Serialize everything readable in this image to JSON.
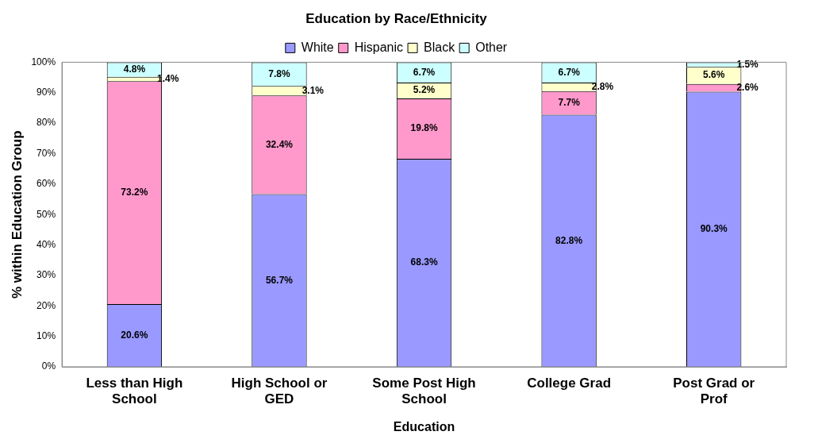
{
  "chart_data": {
    "type": "bar",
    "title": "Education by Race/Ethnicity",
    "xlabel": "Education",
    "ylabel": "% within Education Group",
    "stacked": true,
    "legend": "top",
    "grid": false,
    "categories": [
      "Less than High School",
      "High School or GED",
      "Some Post High School",
      "College Grad",
      "Post Grad or Prof"
    ],
    "ylim": [
      0,
      100
    ],
    "yticks": [
      {
        "value": 0,
        "label": "0%"
      },
      {
        "value": 10,
        "label": "10%"
      },
      {
        "value": 20,
        "label": "20%"
      },
      {
        "value": 30,
        "label": "30%"
      },
      {
        "value": 40,
        "label": "40%"
      },
      {
        "value": 50,
        "label": "50%"
      },
      {
        "value": 60,
        "label": "60%"
      },
      {
        "value": 70,
        "label": "70%"
      },
      {
        "value": 80,
        "label": "80%"
      },
      {
        "value": 90,
        "label": "90%"
      },
      {
        "value": 100,
        "label": "100%"
      }
    ],
    "series": [
      {
        "name": "White",
        "color": "#9999ff",
        "values": [
          20.6,
          56.7,
          68.3,
          82.8,
          90.3
        ],
        "value_labels": [
          "20.6%",
          "56.7%",
          "68.3%",
          "82.8%",
          "90.3%"
        ]
      },
      {
        "name": "Hispanic",
        "color": "#ff99cc",
        "values": [
          73.2,
          32.4,
          19.8,
          7.7,
          2.6
        ],
        "value_labels": [
          "73.2%",
          "32.4%",
          "19.8%",
          "7.7%",
          "2.6%"
        ]
      },
      {
        "name": "Black",
        "color": "#ffffcc",
        "values": [
          1.4,
          3.1,
          5.2,
          2.8,
          5.6
        ],
        "value_labels": [
          "1.4%",
          "3.1%",
          "5.2%",
          "2.8%",
          "5.6%"
        ]
      },
      {
        "name": "Other",
        "color": "#ccffff",
        "values": [
          4.8,
          7.8,
          6.7,
          6.7,
          1.5
        ],
        "value_labels": [
          "4.8%",
          "7.8%",
          "6.7%",
          "6.7%",
          "1.5%"
        ]
      }
    ]
  }
}
